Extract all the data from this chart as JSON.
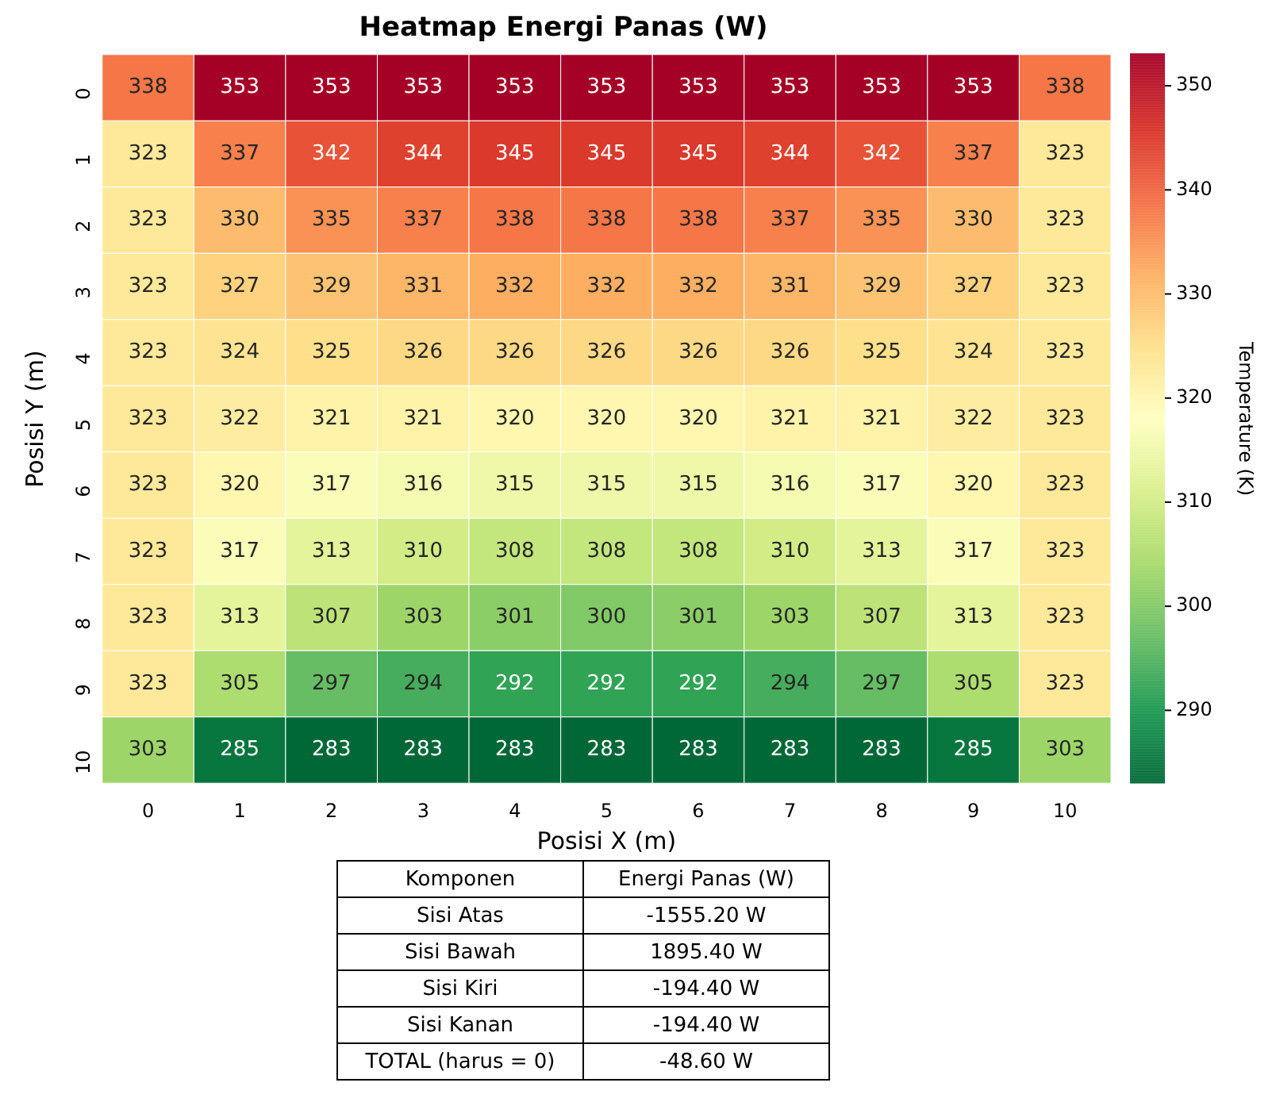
{
  "chart_data": {
    "type": "heatmap",
    "title": "Heatmap Energi Panas (W)",
    "xlabel": "Posisi X (m)",
    "ylabel": "Posisi Y (m)",
    "clabel": "Temperature (K)",
    "categories": [
      "0",
      "1",
      "2",
      "3",
      "4",
      "5",
      "6",
      "7",
      "8",
      "9",
      "10"
    ],
    "y_categories": [
      "0",
      "1",
      "2",
      "3",
      "4",
      "5",
      "6",
      "7",
      "8",
      "9",
      "10"
    ],
    "cells": [
      [
        338,
        353,
        353,
        353,
        353,
        353,
        353,
        353,
        353,
        353,
        338
      ],
      [
        323,
        337,
        342,
        344,
        345,
        345,
        345,
        344,
        342,
        337,
        323
      ],
      [
        323,
        330,
        335,
        337,
        338,
        338,
        338,
        337,
        335,
        330,
        323
      ],
      [
        323,
        327,
        329,
        331,
        332,
        332,
        332,
        331,
        329,
        327,
        323
      ],
      [
        323,
        324,
        325,
        326,
        326,
        326,
        326,
        326,
        325,
        324,
        323
      ],
      [
        323,
        322,
        321,
        321,
        320,
        320,
        320,
        321,
        321,
        322,
        323
      ],
      [
        323,
        320,
        317,
        316,
        315,
        315,
        315,
        316,
        317,
        320,
        323
      ],
      [
        323,
        317,
        313,
        310,
        308,
        308,
        308,
        310,
        313,
        317,
        323
      ],
      [
        323,
        313,
        307,
        303,
        301,
        300,
        301,
        303,
        307,
        313,
        323
      ],
      [
        323,
        305,
        297,
        294,
        292,
        292,
        292,
        294,
        297,
        305,
        323
      ],
      [
        303,
        285,
        283,
        283,
        283,
        283,
        283,
        283,
        283,
        285,
        303
      ]
    ],
    "data_labels": true,
    "clim": [
      283,
      353
    ],
    "cticks": [
      290,
      300,
      310,
      320,
      330,
      340,
      350
    ],
    "annotations": [
      "Komponen",
      "Energi Panas (W)",
      "Sisi Atas",
      "-1555.20 W",
      "Sisi Bawah",
      "1895.40 W",
      "Sisi Kiri",
      "-194.40 W",
      "Sisi Kanan",
      "-194.40 W",
      "TOTAL (harus = 0)",
      "-48.60 W"
    ]
  }
}
